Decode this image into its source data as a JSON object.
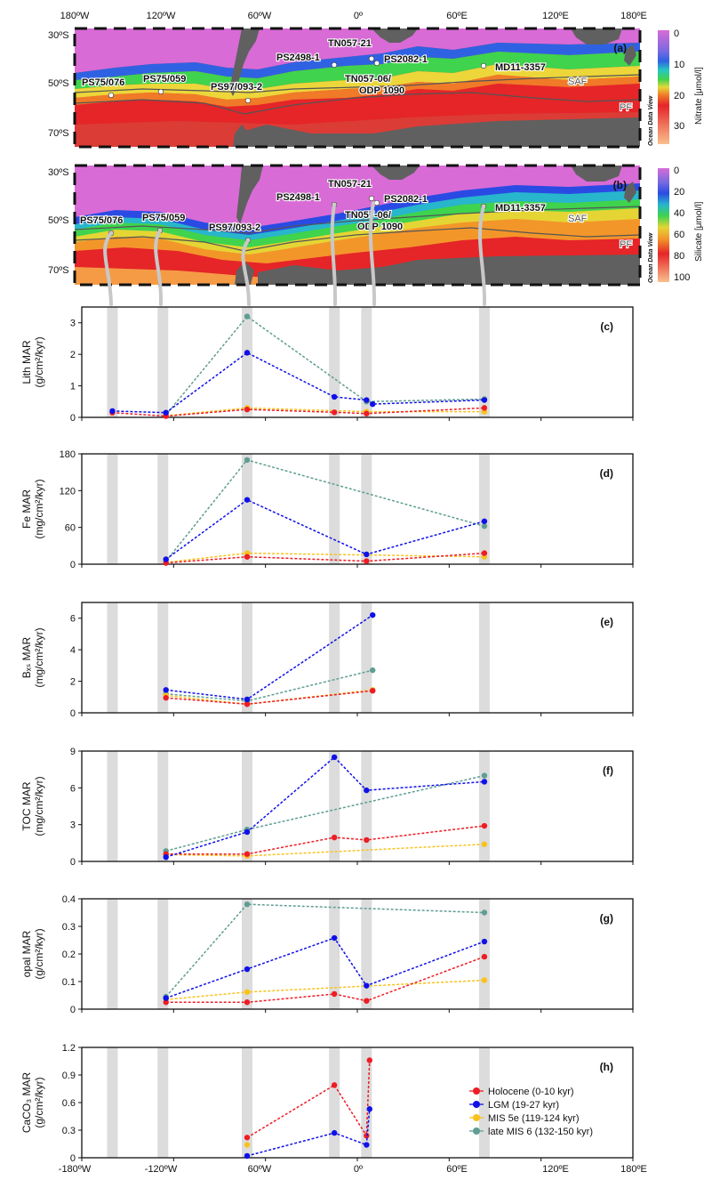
{
  "top_axis": {
    "ticks": [
      "180ºW",
      "120ºW",
      "60ºW",
      "0º",
      "60ºE",
      "120ºE",
      "180ºE"
    ]
  },
  "bottom_axis": {
    "ticks": [
      "-180ºW",
      "-120ºW",
      "60ºW",
      "0º",
      "60ºE",
      "120ºE",
      "180ºE"
    ]
  },
  "maps": [
    {
      "tag": "(a)",
      "colorbar_title": "Nitrate [μmol/l]",
      "colorbar_ticks": [
        "0",
        "10",
        "20",
        "30"
      ],
      "watermark": "Ocean Data View",
      "lat_labels": [
        "30ºS",
        "50ºS",
        "70ºS"
      ],
      "front_labels": [
        "SAF",
        "PF"
      ],
      "site_labels": [
        "PS75/076",
        "PS75/059",
        "PS97/093-2",
        "PS2498-1",
        "TN057-21",
        "PS2082-1",
        "TN057-06/",
        "ODP 1090",
        "MD11-3357"
      ]
    },
    {
      "tag": "(b)",
      "colorbar_title": "Silicate [μmol/l]",
      "colorbar_ticks": [
        "0",
        "20",
        "40",
        "60",
        "80",
        "100"
      ],
      "watermark": "Ocean Data View",
      "lat_labels": [
        "30ºS",
        "50ºS",
        "70ºS"
      ],
      "front_labels": [
        "SAF",
        "PF"
      ],
      "site_labels": [
        "PS75/076",
        "PS75/059",
        "PS97/093-2",
        "PS2498-1",
        "TN057-21",
        "PS2082-1",
        "TN057-06/",
        "ODP 1090",
        "MD11-3357"
      ]
    }
  ],
  "colors": {
    "Holocene": "#ee1c24",
    "LGM": "#1010e8",
    "MIS5e": "#f9c21a",
    "MIS6": "#5f9e92",
    "band": "#dcdcdc"
  },
  "legend": [
    {
      "key": "Holocene",
      "label": "Holocene (0-10 kyr)"
    },
    {
      "key": "LGM",
      "label": "LGM (19-27 kyr)"
    },
    {
      "key": "MIS5e",
      "label": "MIS 5e (119-124 kyr)"
    },
    {
      "key": "MIS6",
      "label": "late MIS 6 (132-150 kyr)"
    }
  ],
  "chart_data": [
    {
      "type": "line",
      "tag": "(c)",
      "ylabel": [
        "Lith MAR",
        "(g/cm²/kyr)"
      ],
      "xlim": [
        -180,
        180
      ],
      "ylim": [
        0,
        3.5
      ],
      "yticks": [
        "0",
        "1",
        "2",
        "3"
      ],
      "series": [
        {
          "key": "MIS6",
          "points": [
            [
              -125,
              0.08
            ],
            [
              -72,
              3.2
            ],
            [
              6,
              0.5
            ],
            [
              83,
              0.58
            ]
          ]
        },
        {
          "key": "MIS5e",
          "points": [
            [
              -125,
              0.05
            ],
            [
              -72,
              0.3
            ],
            [
              6,
              0.18
            ],
            [
              83,
              0.18
            ]
          ]
        },
        {
          "key": "Holocene",
          "points": [
            [
              -160,
              0.15
            ],
            [
              -125,
              0.04
            ],
            [
              -72,
              0.25
            ],
            [
              -15,
              0.16
            ],
            [
              6,
              0.12
            ],
            [
              83,
              0.3
            ]
          ]
        },
        {
          "key": "LGM",
          "points": [
            [
              -160,
              0.2
            ],
            [
              -125,
              0.15
            ],
            [
              -72,
              2.05
            ],
            [
              -15,
              0.65
            ],
            [
              6,
              0.55
            ],
            [
              10,
              0.42
            ],
            [
              83,
              0.55
            ]
          ]
        }
      ]
    },
    {
      "type": "line",
      "tag": "(d)",
      "ylabel": [
        "Fe MAR",
        "(mg/cm²/kyr)"
      ],
      "xlim": [
        -180,
        180
      ],
      "ylim": [
        0,
        180
      ],
      "yticks": [
        "0",
        "60",
        "120",
        "180"
      ],
      "series": [
        {
          "key": "MIS6",
          "points": [
            [
              -125,
              5
            ],
            [
              -72,
              170
            ],
            [
              83,
              62
            ]
          ]
        },
        {
          "key": "MIS5e",
          "points": [
            [
              -125,
              3
            ],
            [
              -72,
              18
            ],
            [
              83,
              12
            ]
          ]
        },
        {
          "key": "Holocene",
          "points": [
            [
              -125,
              2
            ],
            [
              -72,
              12
            ],
            [
              6,
              5
            ],
            [
              83,
              18
            ]
          ]
        },
        {
          "key": "LGM",
          "points": [
            [
              -125,
              8
            ],
            [
              -72,
              105
            ],
            [
              6,
              16
            ],
            [
              83,
              70
            ]
          ]
        }
      ]
    },
    {
      "type": "line",
      "tag": "(e)",
      "ylabel": [
        "Bₓₛ MAR",
        "(mg/cm²/kyr)"
      ],
      "xlim": [
        -180,
        180
      ],
      "ylim": [
        0,
        7
      ],
      "yticks": [
        "0",
        "2",
        "4",
        "6"
      ],
      "series": [
        {
          "key": "MIS6",
          "points": [
            [
              -125,
              1.2
            ],
            [
              -72,
              0.75
            ],
            [
              10,
              2.7
            ]
          ]
        },
        {
          "key": "MIS5e",
          "points": [
            [
              -125,
              1.1
            ],
            [
              -72,
              0.55
            ],
            [
              10,
              1.45
            ]
          ]
        },
        {
          "key": "Holocene",
          "points": [
            [
              -125,
              0.95
            ],
            [
              -72,
              0.55
            ],
            [
              10,
              1.4
            ]
          ]
        },
        {
          "key": "LGM",
          "points": [
            [
              -125,
              1.45
            ],
            [
              -72,
              0.85
            ],
            [
              10,
              6.2
            ]
          ]
        }
      ]
    },
    {
      "type": "line",
      "tag": "(f)",
      "ylabel": [
        "TOC MAR",
        "(mg/cm²/kyr)"
      ],
      "xlim": [
        -180,
        180
      ],
      "ylim": [
        0,
        9
      ],
      "yticks": [
        "0",
        "3",
        "6",
        "9"
      ],
      "series": [
        {
          "key": "MIS6",
          "points": [
            [
              -125,
              0.85
            ],
            [
              -72,
              2.6
            ],
            [
              83,
              7.0
            ]
          ]
        },
        {
          "key": "MIS5e",
          "points": [
            [
              -125,
              0.55
            ],
            [
              -72,
              0.45
            ],
            [
              83,
              1.4
            ]
          ]
        },
        {
          "key": "Holocene",
          "points": [
            [
              -125,
              0.6
            ],
            [
              -72,
              0.6
            ],
            [
              -15,
              1.95
            ],
            [
              6,
              1.75
            ],
            [
              83,
              2.9
            ]
          ]
        },
        {
          "key": "LGM",
          "points": [
            [
              -125,
              0.35
            ],
            [
              -72,
              2.4
            ],
            [
              -15,
              8.5
            ],
            [
              6,
              5.8
            ],
            [
              83,
              6.5
            ]
          ]
        }
      ]
    },
    {
      "type": "line",
      "tag": "(g)",
      "ylabel": [
        "opal MAR",
        "(g/cm²/kyr)"
      ],
      "xlim": [
        -180,
        180
      ],
      "ylim": [
        0,
        0.4
      ],
      "yticks": [
        "0",
        "0.1",
        "0.2",
        "0.3",
        "0.4"
      ],
      "series": [
        {
          "key": "MIS6",
          "points": [
            [
              -125,
              0.045
            ],
            [
              -72,
              0.38
            ],
            [
              83,
              0.35
            ]
          ]
        },
        {
          "key": "MIS5e",
          "points": [
            [
              -125,
              0.035
            ],
            [
              -72,
              0.062
            ],
            [
              83,
              0.105
            ]
          ]
        },
        {
          "key": "Holocene",
          "points": [
            [
              -125,
              0.025
            ],
            [
              -72,
              0.025
            ],
            [
              -15,
              0.055
            ],
            [
              6,
              0.03
            ],
            [
              83,
              0.19
            ]
          ]
        },
        {
          "key": "LGM",
          "points": [
            [
              -125,
              0.04
            ],
            [
              -72,
              0.145
            ],
            [
              -15,
              0.258
            ],
            [
              6,
              0.085
            ],
            [
              83,
              0.245
            ]
          ]
        }
      ]
    },
    {
      "type": "line",
      "tag": "(h)",
      "ylabel": [
        "CaCO₃ MAR",
        "(g/cm²/kyr)"
      ],
      "xlim": [
        -180,
        180
      ],
      "ylim": [
        0,
        1.2
      ],
      "yticks": [
        "0",
        "0.3",
        "0.6",
        "0.9",
        "1.2"
      ],
      "series": [
        {
          "key": "MIS5e",
          "points": [
            [
              -72,
              0.14
            ]
          ]
        },
        {
          "key": "Holocene",
          "points": [
            [
              -72,
              0.22
            ],
            [
              -15,
              0.79
            ],
            [
              6,
              0.24
            ],
            [
              8,
              1.06
            ]
          ]
        },
        {
          "key": "LGM",
          "points": [
            [
              -72,
              0.02
            ],
            [
              -15,
              0.27
            ],
            [
              6,
              0.14
            ],
            [
              8,
              0.53
            ]
          ]
        }
      ]
    }
  ]
}
